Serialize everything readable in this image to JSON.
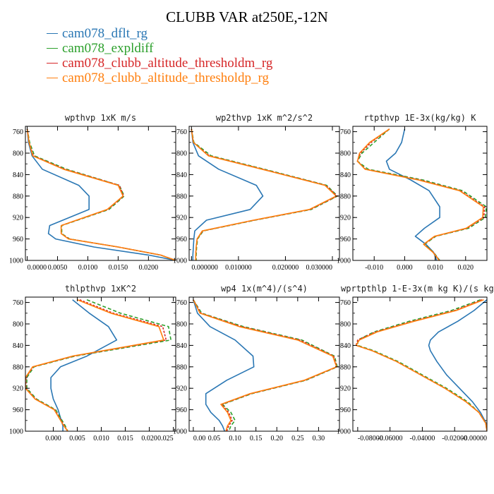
{
  "title": "CLUBB VAR at250E,-12N",
  "legend": [
    {
      "name": "cam078_dflt_rg",
      "color": "#2a77b4"
    },
    {
      "name": "cam078_expldiff",
      "color": "#2ca02c"
    },
    {
      "name": "cam078_clubb_altitude_thresholdm_rg",
      "color": "#d62728"
    },
    {
      "name": "cam078_clubb_altitude_thresholdp_rg",
      "color": "#ff7f0e"
    }
  ],
  "chart_data": [
    {
      "type": "line",
      "title": "wpthvp  1xK m/s",
      "ylim": [
        1000,
        750
      ],
      "yticks": [
        760,
        800,
        840,
        880,
        920,
        960,
        1000
      ],
      "xlim": [
        -0.0003,
        0.0245
      ],
      "xticks": [
        0.0,
        0.005,
        0.01,
        0.015,
        0.02
      ],
      "xticklabels": [
        "0.0000",
        "0.0050",
        "0.0100",
        "0.0150",
        "0.0200"
      ],
      "y": [
        755,
        780,
        805,
        830,
        860,
        880,
        905,
        935,
        950,
        960,
        975,
        990,
        1000
      ],
      "series": [
        {
          "name": "cam078_dflt_rg",
          "color": "#2a77b4",
          "dash": "",
          "values": [
            0.0,
            0.0002,
            0.0008,
            0.0025,
            0.0085,
            0.0102,
            0.0102,
            0.0037,
            0.0035,
            0.0047,
            0.011,
            0.02,
            0.0245
          ]
        },
        {
          "name": "cam078_expldiff",
          "color": "#2ca02c",
          "dash": "5,3",
          "values": [
            0.0,
            0.0004,
            0.0012,
            0.0065,
            0.0152,
            0.016,
            0.0135,
            0.0057,
            0.0057,
            0.007,
            0.015,
            0.022,
            0.0245
          ]
        },
        {
          "name": "cam078_clubb_altitude_thresholdm_rg",
          "color": "#d62728",
          "dash": "3,2",
          "values": [
            0.0,
            0.0003,
            0.001,
            0.0062,
            0.0152,
            0.0159,
            0.0133,
            0.0056,
            0.0056,
            0.0069,
            0.015,
            0.022,
            0.0245
          ]
        },
        {
          "name": "cam078_clubb_altitude_thresholdp_rg",
          "color": "#ff7f0e",
          "dash": "",
          "values": [
            0.0,
            0.0003,
            0.0009,
            0.006,
            0.015,
            0.0158,
            0.0132,
            0.0056,
            0.0056,
            0.0068,
            0.015,
            0.022,
            0.0245
          ]
        }
      ]
    },
    {
      "type": "line",
      "title": "wp2thvp  1xK m^2/s^2",
      "ylim": [
        1000,
        750
      ],
      "yticks": [
        760,
        800,
        840,
        880,
        920,
        960,
        1000
      ],
      "xlim": [
        -0.0005,
        0.0315
      ],
      "xticks": [
        0.0,
        0.01,
        0.02,
        0.03
      ],
      "xticklabels": [
        "0.000000",
        "0.010000",
        "0.020000",
        "0.030000"
      ],
      "y": [
        755,
        780,
        805,
        830,
        860,
        880,
        905,
        925,
        945,
        960,
        975,
        990,
        1000
      ],
      "series": [
        {
          "name": "cam078_dflt_rg",
          "color": "#2a77b4",
          "dash": "",
          "values": [
            0.0,
            0.0003,
            0.0015,
            0.0058,
            0.0138,
            0.0152,
            0.0125,
            0.0032,
            0.0007,
            0.0005,
            0.0004,
            0.0003,
            0.0003
          ]
        },
        {
          "name": "cam078_expldiff",
          "color": "#2ca02c",
          "dash": "5,3",
          "values": [
            0.0,
            0.0005,
            0.0042,
            0.0155,
            0.0288,
            0.0311,
            0.0255,
            0.0135,
            0.0025,
            0.0013,
            0.0011,
            0.001,
            0.001
          ]
        },
        {
          "name": "cam078_clubb_altitude_thresholdm_rg",
          "color": "#d62728",
          "dash": "3,2",
          "values": [
            0.0,
            0.0004,
            0.0038,
            0.0152,
            0.0286,
            0.031,
            0.0253,
            0.0133,
            0.0024,
            0.0012,
            0.001,
            0.0009,
            0.0009
          ]
        },
        {
          "name": "cam078_clubb_altitude_thresholdp_rg",
          "color": "#ff7f0e",
          "dash": "",
          "values": [
            0.0,
            0.0004,
            0.0036,
            0.015,
            0.0284,
            0.0308,
            0.0251,
            0.0132,
            0.0023,
            0.0012,
            0.001,
            0.0009,
            0.0009
          ]
        }
      ]
    },
    {
      "type": "line",
      "title": "rtpthvp  1E-3x(kg/kg) K",
      "ylim": [
        1000,
        750
      ],
      "yticks": [
        760,
        800,
        840,
        880,
        920,
        960,
        1000
      ],
      "xlim": [
        -0.017,
        0.027
      ],
      "xticks": [
        -0.01,
        0.0,
        0.01,
        0.02
      ],
      "xticklabels": [
        "-0.010",
        "0.000",
        "0.010",
        "0.020"
      ],
      "y": [
        755,
        780,
        800,
        815,
        830,
        850,
        870,
        900,
        920,
        940,
        955,
        970,
        985,
        1000
      ],
      "series": [
        {
          "name": "cam078_dflt_rg",
          "color": "#2a77b4",
          "dash": "",
          "values": [
            0.0,
            -0.001,
            -0.003,
            -0.006,
            -0.005,
            0.002,
            0.008,
            0.0115,
            0.0115,
            0.0065,
            0.0035,
            0.007,
            0.0095,
            0.0105
          ]
        },
        {
          "name": "cam078_expldiff",
          "color": "#2ca02c",
          "dash": "5,3",
          "values": [
            -0.005,
            -0.01,
            -0.014,
            -0.0155,
            -0.012,
            0.006,
            0.019,
            0.0268,
            0.0265,
            0.021,
            0.0102,
            0.0065,
            0.0095,
            0.0115
          ]
        },
        {
          "name": "cam078_clubb_altitude_thresholdm_rg",
          "color": "#d62728",
          "dash": "3,2",
          "values": [
            -0.005,
            -0.011,
            -0.0145,
            -0.0155,
            -0.0128,
            0.005,
            0.0183,
            0.0262,
            0.026,
            0.0205,
            0.01,
            0.0063,
            0.0094,
            0.0114
          ]
        },
        {
          "name": "cam078_clubb_altitude_thresholdp_rg",
          "color": "#ff7f0e",
          "dash": "",
          "values": [
            -0.005,
            -0.0115,
            -0.0148,
            -0.0155,
            -0.013,
            0.0045,
            0.018,
            0.0258,
            0.0256,
            0.0202,
            0.0098,
            0.0062,
            0.0093,
            0.0113
          ]
        }
      ]
    },
    {
      "type": "line",
      "title": "thlpthvp  1xK^2",
      "ylim": [
        1000,
        750
      ],
      "yticks": [
        760,
        800,
        840,
        880,
        920,
        960,
        1000
      ],
      "xlim": [
        -0.0058,
        0.0255
      ],
      "xticks": [
        0.0,
        0.005,
        0.01,
        0.015,
        0.02,
        0.025
      ],
      "xticklabels": [
        "0.000",
        "0.005",
        "0.010",
        "0.015",
        "0.020",
        "0.025"
      ],
      "y": [
        755,
        780,
        805,
        830,
        860,
        880,
        900,
        920,
        940,
        960,
        975,
        990,
        1000
      ],
      "series": [
        {
          "name": "cam078_dflt_rg",
          "color": "#2a77b4",
          "dash": "",
          "values": [
            0.004,
            0.0075,
            0.0115,
            0.0132,
            0.007,
            0.0015,
            -0.0005,
            -0.0005,
            0.0,
            0.001,
            0.0015,
            0.002,
            0.002
          ]
        },
        {
          "name": "cam078_expldiff",
          "color": "#2ca02c",
          "dash": "5,3",
          "values": [
            0.007,
            0.014,
            0.024,
            0.0245,
            0.0045,
            -0.004,
            -0.0055,
            -0.0055,
            -0.0035,
            0.0005,
            0.0015,
            0.0025,
            0.003
          ]
        },
        {
          "name": "cam078_clubb_altitude_thresholdm_rg",
          "color": "#d62728",
          "dash": "3,2",
          "values": [
            0.0055,
            0.0125,
            0.0228,
            0.0235,
            0.0042,
            -0.0042,
            -0.0057,
            -0.0057,
            -0.0037,
            0.0003,
            0.0013,
            0.0023,
            0.003
          ]
        },
        {
          "name": "cam078_clubb_altitude_thresholdp_rg",
          "color": "#ff7f0e",
          "dash": "",
          "values": [
            0.005,
            0.012,
            0.022,
            0.023,
            0.004,
            -0.0043,
            -0.0058,
            -0.0058,
            -0.0038,
            0.0002,
            0.0012,
            0.0022,
            0.003
          ]
        }
      ]
    },
    {
      "type": "line",
      "title": "wp4  1x(m^4)/(s^4)",
      "ylim": [
        1000,
        750
      ],
      "yticks": [
        760,
        800,
        840,
        880,
        920,
        960,
        1000
      ],
      "xlim": [
        -0.01,
        0.35
      ],
      "xticks": [
        0.0,
        0.05,
        0.1,
        0.15,
        0.2,
        0.25,
        0.3
      ],
      "xticklabels": [
        "0.00",
        "0.05",
        "0.10",
        "0.15",
        "0.20",
        "0.25",
        "0.30"
      ],
      "y": [
        755,
        780,
        805,
        830,
        860,
        880,
        905,
        930,
        950,
        965,
        980,
        990,
        1000
      ],
      "series": [
        {
          "name": "cam078_dflt_rg",
          "color": "#2a77b4",
          "dash": "",
          "values": [
            0.0,
            0.01,
            0.04,
            0.1,
            0.143,
            0.145,
            0.08,
            0.03,
            0.03,
            0.042,
            0.062,
            0.07,
            0.075
          ]
        },
        {
          "name": "cam078_expldiff",
          "color": "#2ca02c",
          "dash": "5,3",
          "values": [
            0.0,
            0.02,
            0.12,
            0.26,
            0.338,
            0.345,
            0.27,
            0.14,
            0.07,
            0.09,
            0.1,
            0.09,
            0.085
          ]
        },
        {
          "name": "cam078_clubb_altitude_thresholdm_rg",
          "color": "#d62728",
          "dash": "3,2",
          "values": [
            0.0,
            0.018,
            0.115,
            0.255,
            0.336,
            0.344,
            0.268,
            0.138,
            0.068,
            0.085,
            0.093,
            0.085,
            0.08
          ]
        },
        {
          "name": "cam078_clubb_altitude_thresholdp_rg",
          "color": "#ff7f0e",
          "dash": "",
          "values": [
            0.0,
            0.016,
            0.11,
            0.25,
            0.334,
            0.343,
            0.266,
            0.136,
            0.066,
            0.082,
            0.09,
            0.082,
            0.078
          ]
        }
      ]
    },
    {
      "type": "line",
      "title": "wprtpthlp  1-E-3x(m kg K)/(s kg)",
      "ylim": [
        1000,
        750
      ],
      "yticks": [
        760,
        800,
        840,
        880,
        920,
        960,
        1000
      ],
      "xlim": [
        -0.083,
        0.0
      ],
      "xticks": [
        -0.08,
        -0.06,
        -0.04,
        -0.02,
        0.0
      ],
      "xticklabels": [
        "-0.08000",
        "-0.06000",
        "-0.04000",
        "-0.02000",
        "-0.00000"
      ],
      "y": [
        755,
        775,
        795,
        815,
        830,
        840,
        850,
        870,
        895,
        920,
        945,
        965,
        985,
        1000
      ],
      "series": [
        {
          "name": "cam078_dflt_rg",
          "color": "#2a77b4",
          "dash": "",
          "values": [
            0.0,
            -0.008,
            -0.018,
            -0.03,
            -0.035,
            -0.036,
            -0.035,
            -0.031,
            -0.025,
            -0.017,
            -0.009,
            -0.004,
            -0.0005,
            0.0
          ]
        },
        {
          "name": "cam078_expldiff",
          "color": "#2ca02c",
          "dash": "5,3",
          "values": [
            -0.004,
            -0.022,
            -0.048,
            -0.07,
            -0.08,
            -0.08,
            -0.07,
            -0.055,
            -0.04,
            -0.025,
            -0.012,
            -0.005,
            -0.0008,
            0.0
          ]
        },
        {
          "name": "cam078_clubb_altitude_thresholdm_rg",
          "color": "#d62728",
          "dash": "3,2",
          "values": [
            -0.003,
            -0.02,
            -0.046,
            -0.069,
            -0.08,
            -0.081,
            -0.071,
            -0.056,
            -0.041,
            -0.026,
            -0.013,
            -0.005,
            -0.0008,
            0.0
          ]
        },
        {
          "name": "cam078_clubb_altitude_thresholdp_rg",
          "color": "#ff7f0e",
          "dash": "",
          "values": [
            -0.002,
            -0.019,
            -0.045,
            -0.068,
            -0.079,
            -0.081,
            -0.071,
            -0.056,
            -0.041,
            -0.026,
            -0.013,
            -0.005,
            -0.0008,
            0.0
          ]
        }
      ]
    }
  ]
}
